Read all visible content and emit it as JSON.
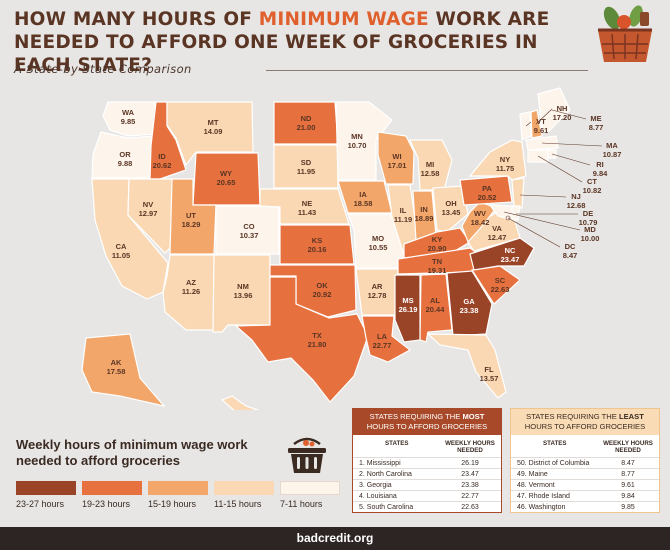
{
  "header": {
    "title_part1": "How many hours of",
    "title_highlight": "minimum wage",
    "title_part2": "work are needed to afford one week of groceries in each state?",
    "subtitle": "A State-by-State Comparison"
  },
  "colors": {
    "tier_23_27": "#9a4427",
    "tier_19_23": "#e6713f",
    "tier_15_19": "#f3a66a",
    "tier_11_15": "#f9d8b3",
    "tier_7_11": "#fdf5ec",
    "background": "#e7e6e4",
    "title_brown": "#5b3524",
    "highlight_orange": "#e0602d"
  },
  "map": {
    "states": [
      {
        "code": "WA",
        "value": "9.85"
      },
      {
        "code": "OR",
        "value": "9.88"
      },
      {
        "code": "CA",
        "value": "11.05"
      },
      {
        "code": "ID",
        "value": "20.62"
      },
      {
        "code": "NV",
        "value": "12.97"
      },
      {
        "code": "MT",
        "value": "14.09"
      },
      {
        "code": "WY",
        "value": "20.65"
      },
      {
        "code": "UT",
        "value": "18.29"
      },
      {
        "code": "AZ",
        "value": "11.26"
      },
      {
        "code": "CO",
        "value": "10.37"
      },
      {
        "code": "NM",
        "value": "13.96"
      },
      {
        "code": "ND",
        "value": "21.00"
      },
      {
        "code": "SD",
        "value": "11.95"
      },
      {
        "code": "NE",
        "value": "11.43"
      },
      {
        "code": "KS",
        "value": "20.16"
      },
      {
        "code": "OK",
        "value": "20.92"
      },
      {
        "code": "TX",
        "value": "21.80"
      },
      {
        "code": "MN",
        "value": "10.70"
      },
      {
        "code": "IA",
        "value": "18.58"
      },
      {
        "code": "MO",
        "value": "10.55"
      },
      {
        "code": "AR",
        "value": "12.78"
      },
      {
        "code": "LA",
        "value": "22.77"
      },
      {
        "code": "WI",
        "value": "17.01"
      },
      {
        "code": "IL",
        "value": "11.19"
      },
      {
        "code": "MI",
        "value": "12.58"
      },
      {
        "code": "IN",
        "value": "18.89"
      },
      {
        "code": "OH",
        "value": "13.45"
      },
      {
        "code": "KY",
        "value": "20.90"
      },
      {
        "code": "TN",
        "value": "19.31"
      },
      {
        "code": "MS",
        "value": "26.19"
      },
      {
        "code": "AL",
        "value": "20.44"
      },
      {
        "code": "GA",
        "value": "23.38"
      },
      {
        "code": "FL",
        "value": "13.57"
      },
      {
        "code": "SC",
        "value": "22.63"
      },
      {
        "code": "NC",
        "value": "23.47"
      },
      {
        "code": "VA",
        "value": "12.47"
      },
      {
        "code": "WV",
        "value": "18.42"
      },
      {
        "code": "PA",
        "value": "20.52"
      },
      {
        "code": "NY",
        "value": "11.75"
      },
      {
        "code": "VT",
        "value": "9.61"
      },
      {
        "code": "NH",
        "value": "17.20"
      },
      {
        "code": "ME",
        "value": "8.77"
      },
      {
        "code": "MA",
        "value": "10.87"
      },
      {
        "code": "RI",
        "value": "9.84"
      },
      {
        "code": "CT",
        "value": "10.82"
      },
      {
        "code": "NJ",
        "value": "12.68"
      },
      {
        "code": "DE",
        "value": "10.79"
      },
      {
        "code": "MD",
        "value": "10.00"
      },
      {
        "code": "DC",
        "value": "8.47"
      },
      {
        "code": "AK",
        "value": "17.58"
      },
      {
        "code": "HI",
        "value": "14.23"
      }
    ]
  },
  "legend": {
    "title": "Weekly hours of minimum wage work needed to afford groceries",
    "items": [
      {
        "label": "23-27 hours",
        "color": "#9a4427"
      },
      {
        "label": "19-23 hours",
        "color": "#e6713f"
      },
      {
        "label": "15-19 hours",
        "color": "#f3a66a"
      },
      {
        "label": "11-15 hours",
        "color": "#f9d8b3"
      },
      {
        "label": "7-11 hours",
        "color": "#fdf5ec"
      }
    ]
  },
  "most_table": {
    "title_pre": "States requiring the",
    "title_emph": "most",
    "title_post": "hours to afford groceries",
    "col_states": "STATES",
    "col_hours": "WEEKLY HOURS NEEDED",
    "rows": [
      {
        "state": "1. Mississippi",
        "hours": "26.19"
      },
      {
        "state": "2. North Carolina",
        "hours": "23.47"
      },
      {
        "state": "3. Georgia",
        "hours": "23.38"
      },
      {
        "state": "4. Louisiana",
        "hours": "22.77"
      },
      {
        "state": "5. South Carolina",
        "hours": "22.63"
      }
    ]
  },
  "least_table": {
    "title_pre": "States requiring the",
    "title_emph": "least",
    "title_post": "hours to afford groceries",
    "col_states": "STATES",
    "col_hours": "WEEKLY HOURS NEEDED",
    "rows": [
      {
        "state": "50. District of Columbia",
        "hours": "8.47"
      },
      {
        "state": "49. Maine",
        "hours": "8.77"
      },
      {
        "state": "48. Vermont",
        "hours": "9.61"
      },
      {
        "state": "47. Rhode Island",
        "hours": "9.84"
      },
      {
        "state": "46. Washington",
        "hours": "9.85"
      }
    ]
  },
  "footer": {
    "brand": "badcredit.org"
  }
}
